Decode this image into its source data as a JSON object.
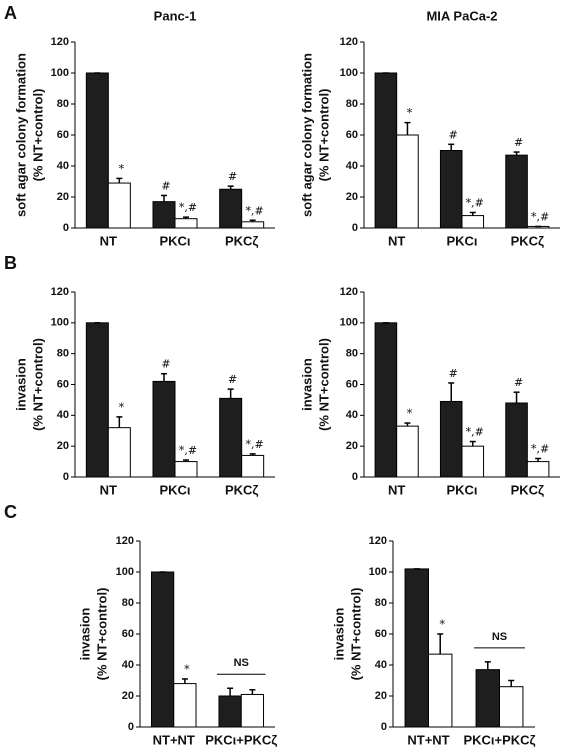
{
  "chart_data": [
    {
      "type": "bar",
      "panel_label": "A",
      "title": "Panc-1",
      "ylabel": [
        "soft agar colony formation",
        "(% NT+control)"
      ],
      "categories": [
        "NT",
        "PKCι",
        "PKCζ"
      ],
      "ylim": [
        0,
        120
      ],
      "yticks": [
        0,
        20,
        40,
        60,
        80,
        100,
        120
      ],
      "series": [
        {
          "color": "#1e1e1e",
          "values": [
            100,
            17,
            25
          ],
          "errors": [
            0,
            4,
            2
          ],
          "annotations": [
            null,
            "#",
            "#"
          ]
        },
        {
          "color": "#ffffff",
          "values": [
            29,
            6,
            4
          ],
          "errors": [
            3,
            1,
            1
          ],
          "annotations": [
            "*",
            "*,#",
            "*,#"
          ]
        }
      ]
    },
    {
      "type": "bar",
      "title": "MIA PaCa-2",
      "ylabel": [
        "soft agar colony formation",
        "(% NT+control)"
      ],
      "categories": [
        "NT",
        "PKCι",
        "PKCζ"
      ],
      "ylim": [
        0,
        120
      ],
      "yticks": [
        0,
        20,
        40,
        60,
        80,
        100,
        120
      ],
      "series": [
        {
          "color": "#1e1e1e",
          "values": [
            100,
            50,
            47
          ],
          "errors": [
            0,
            4,
            2
          ],
          "annotations": [
            null,
            "#",
            "#"
          ]
        },
        {
          "color": "#ffffff",
          "values": [
            60,
            8,
            1
          ],
          "errors": [
            8,
            2,
            0
          ],
          "annotations": [
            "*",
            "*,#",
            "*,#"
          ]
        }
      ]
    },
    {
      "type": "bar",
      "panel_label": "B",
      "ylabel": [
        "invasion",
        "(% NT+control)"
      ],
      "categories": [
        "NT",
        "PKCι",
        "PKCζ"
      ],
      "ylim": [
        0,
        120
      ],
      "yticks": [
        0,
        20,
        40,
        60,
        80,
        100,
        120
      ],
      "series": [
        {
          "color": "#1e1e1e",
          "values": [
            100,
            62,
            51
          ],
          "errors": [
            0,
            5,
            6
          ],
          "annotations": [
            null,
            "#",
            "#"
          ]
        },
        {
          "color": "#ffffff",
          "values": [
            32,
            10,
            14
          ],
          "errors": [
            7,
            1,
            1
          ],
          "annotations": [
            "*",
            "*,#",
            "*,#"
          ]
        }
      ]
    },
    {
      "type": "bar",
      "ylabel": [
        "invasion",
        "(% NT+control)"
      ],
      "categories": [
        "NT",
        "PKCι",
        "PKCζ"
      ],
      "ylim": [
        0,
        120
      ],
      "yticks": [
        0,
        20,
        40,
        60,
        80,
        100,
        120
      ],
      "series": [
        {
          "color": "#1e1e1e",
          "values": [
            100,
            49,
            48
          ],
          "errors": [
            0,
            12,
            7
          ],
          "annotations": [
            null,
            "#",
            "#"
          ]
        },
        {
          "color": "#ffffff",
          "values": [
            33,
            20,
            10
          ],
          "errors": [
            2,
            3,
            2
          ],
          "annotations": [
            "*",
            "*,#",
            "*,#"
          ]
        }
      ]
    },
    {
      "type": "bar",
      "panel_label": "C",
      "ylabel": [
        "invasion",
        "(% NT+control)"
      ],
      "categories": [
        "NT+NT",
        "PKCι+PKCζ"
      ],
      "group_annotations": [
        null,
        "NS"
      ],
      "ylim": [
        0,
        120
      ],
      "yticks": [
        0,
        20,
        40,
        60,
        80,
        100,
        120
      ],
      "series": [
        {
          "color": "#1e1e1e",
          "values": [
            100,
            20
          ],
          "errors": [
            0,
            5
          ],
          "annotations": [
            null,
            null
          ]
        },
        {
          "color": "#ffffff",
          "values": [
            28,
            21
          ],
          "errors": [
            3,
            3
          ],
          "annotations": [
            "*",
            null
          ]
        }
      ]
    },
    {
      "type": "bar",
      "ylabel": [
        "invasion",
        "(% NT+control)"
      ],
      "categories": [
        "NT+NT",
        "PKCι+PKCζ"
      ],
      "group_annotations": [
        null,
        "NS"
      ],
      "ylim": [
        0,
        120
      ],
      "yticks": [
        0,
        20,
        40,
        60,
        80,
        100,
        120
      ],
      "series": [
        {
          "color": "#1e1e1e",
          "values": [
            102,
            37
          ],
          "errors": [
            0,
            5
          ],
          "annotations": [
            null,
            null
          ]
        },
        {
          "color": "#ffffff",
          "values": [
            47,
            26
          ],
          "errors": [
            13,
            4
          ],
          "annotations": [
            "*",
            null
          ]
        }
      ]
    }
  ]
}
